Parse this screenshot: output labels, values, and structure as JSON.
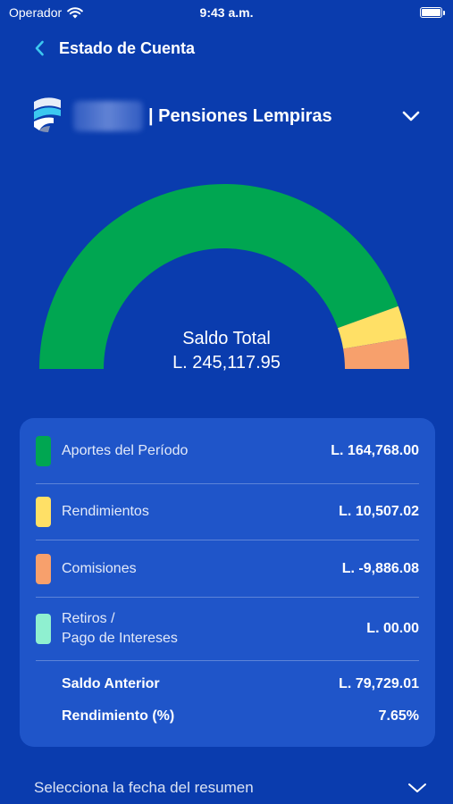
{
  "status_bar": {
    "carrier": "Operador",
    "time": "9:43 a.m."
  },
  "nav": {
    "title": "Estado de Cuenta"
  },
  "account": {
    "name": "| Pensiones Lempiras"
  },
  "gauge": {
    "title": "Saldo Total",
    "total": "L. 245,117.95"
  },
  "chart_data": {
    "type": "pie",
    "categories": [
      "Aportes del Período",
      "Rendimientos",
      "Comisiones"
    ],
    "values": [
      164768.0,
      10507.02,
      9886.08
    ],
    "colors": [
      "#00a651",
      "#ffe066",
      "#f7a06c"
    ]
  },
  "summary": {
    "items": [
      {
        "label": "Aportes del Período",
        "value": "L. 164,768.00",
        "color": "#00a651"
      },
      {
        "label": "Rendimientos",
        "value": "L. 10,507.02",
        "color": "#ffe066"
      },
      {
        "label": "Comisiones",
        "value": "L. -9,886.08",
        "color": "#f7a06c"
      },
      {
        "label_line1": "Retiros /",
        "label_line2": "Pago de Intereses",
        "value": "L. 00.00",
        "color": "#8ff0d0"
      }
    ],
    "previous_balance_label": "Saldo Anterior",
    "previous_balance_value": "L. 79,729.01",
    "return_label": "Rendimiento (%)",
    "return_value": "7.65%"
  },
  "date_selector": {
    "label": "Selecciona la fecha del resumen"
  },
  "icons": {
    "back": "chevron-left-icon",
    "account_dropdown": "chevron-down-icon",
    "date_dropdown": "chevron-down-icon",
    "wifi": "wifi-icon",
    "battery": "battery-icon",
    "logo": "brand-logo-icon"
  },
  "colors": {
    "background": "#0a3cae",
    "card": "#1f55c9",
    "accent": "#3cc8f0"
  }
}
